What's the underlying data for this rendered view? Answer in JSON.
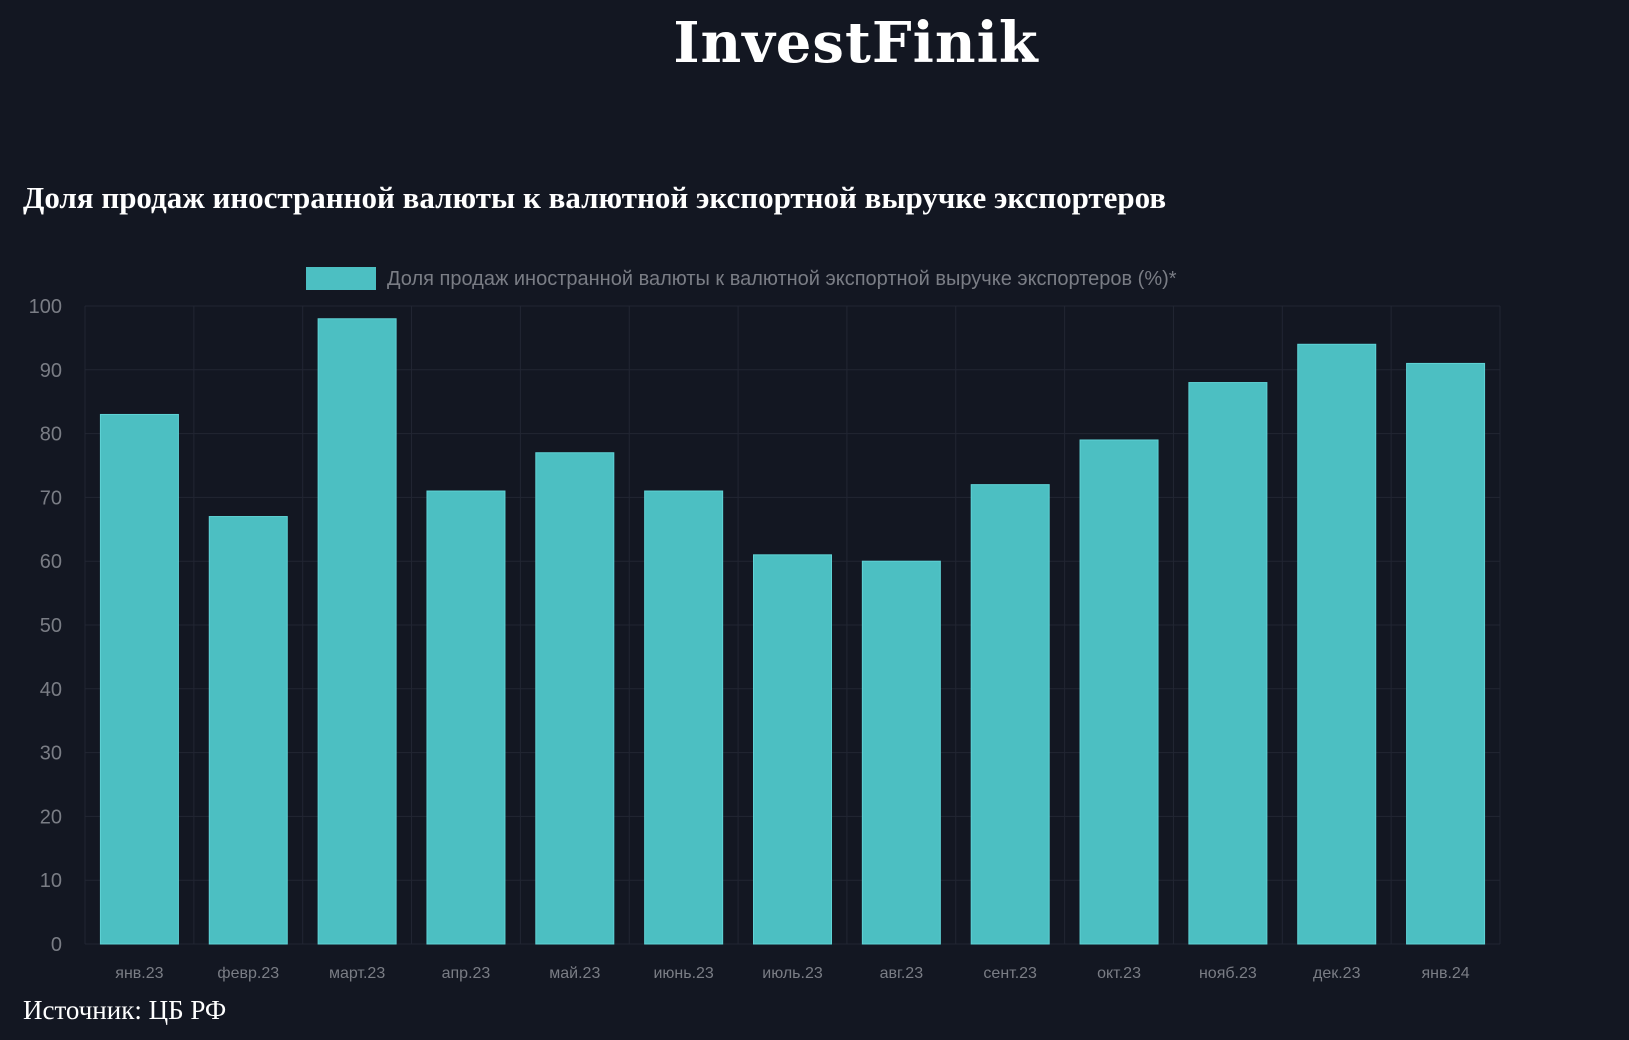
{
  "header": {
    "logo_text": "InvestFinik"
  },
  "chart_title": "Доля продаж иностранной валюты к валютной экспортной выручке экспортеров",
  "source_text": "Источник: ЦБ РФ",
  "colors": {
    "background": "#131722",
    "bar": "#4cbfc2",
    "grid": "#222633",
    "tick_text": "#7a7d85"
  },
  "chart_data": {
    "type": "bar",
    "title": "Доля продаж иностранной валюты к валютной экспортной выручке экспортеров",
    "categories": [
      "янв.23",
      "февр.23",
      "март.23",
      "апр.23",
      "май.23",
      "июнь.23",
      "июль.23",
      "авг.23",
      "сент.23",
      "окт.23",
      "нояб.23",
      "дек.23",
      "янв.24"
    ],
    "series": [
      {
        "name": "Доля продаж иностранной валюты к валютной экспортной выручке экспортеров (%)*",
        "values": [
          83,
          67,
          98,
          71,
          77,
          71,
          61,
          60,
          72,
          79,
          88,
          94,
          91
        ]
      }
    ],
    "yticks": [
      0,
      10,
      20,
      30,
      40,
      50,
      60,
      70,
      80,
      90,
      100
    ],
    "ylim": [
      0,
      100
    ],
    "grid": true,
    "legend_position": "top-center"
  }
}
